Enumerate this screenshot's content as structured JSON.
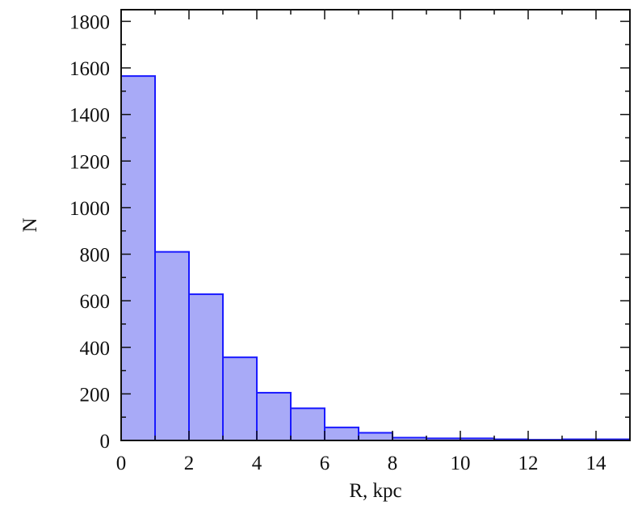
{
  "chart_data": {
    "type": "bar",
    "title": "",
    "xlabel": "R, kpc",
    "ylabel": "N",
    "bins": [
      {
        "x0": 0,
        "x1": 1,
        "value": 1565
      },
      {
        "x0": 1,
        "x1": 2,
        "value": 810
      },
      {
        "x0": 2,
        "x1": 3,
        "value": 628
      },
      {
        "x0": 3,
        "x1": 4,
        "value": 357
      },
      {
        "x0": 4,
        "x1": 5,
        "value": 205
      },
      {
        "x0": 5,
        "x1": 6,
        "value": 138
      },
      {
        "x0": 6,
        "x1": 7,
        "value": 56
      },
      {
        "x0": 7,
        "x1": 8,
        "value": 33
      },
      {
        "x0": 8,
        "x1": 9,
        "value": 12
      },
      {
        "x0": 9,
        "x1": 10,
        "value": 9
      },
      {
        "x0": 10,
        "x1": 11,
        "value": 9
      },
      {
        "x0": 11,
        "x1": 12,
        "value": 5
      },
      {
        "x0": 12,
        "x1": 13,
        "value": 3
      },
      {
        "x0": 13,
        "x1": 14,
        "value": 5
      },
      {
        "x0": 14,
        "x1": 15,
        "value": 5
      }
    ],
    "xlim": [
      0,
      15
    ],
    "ylim": [
      0,
      1850
    ],
    "xticks": [
      "0",
      "2",
      "4",
      "6",
      "8",
      "10",
      "12",
      "14"
    ],
    "yticks": [
      "0",
      "200",
      "400",
      "600",
      "800",
      "1000",
      "1200",
      "1400",
      "1600",
      "1800"
    ],
    "grid": false,
    "colors": {
      "bar_fill": "#a8aaf7",
      "bar_edge": "#1a1aff",
      "axis": "#111111"
    }
  }
}
